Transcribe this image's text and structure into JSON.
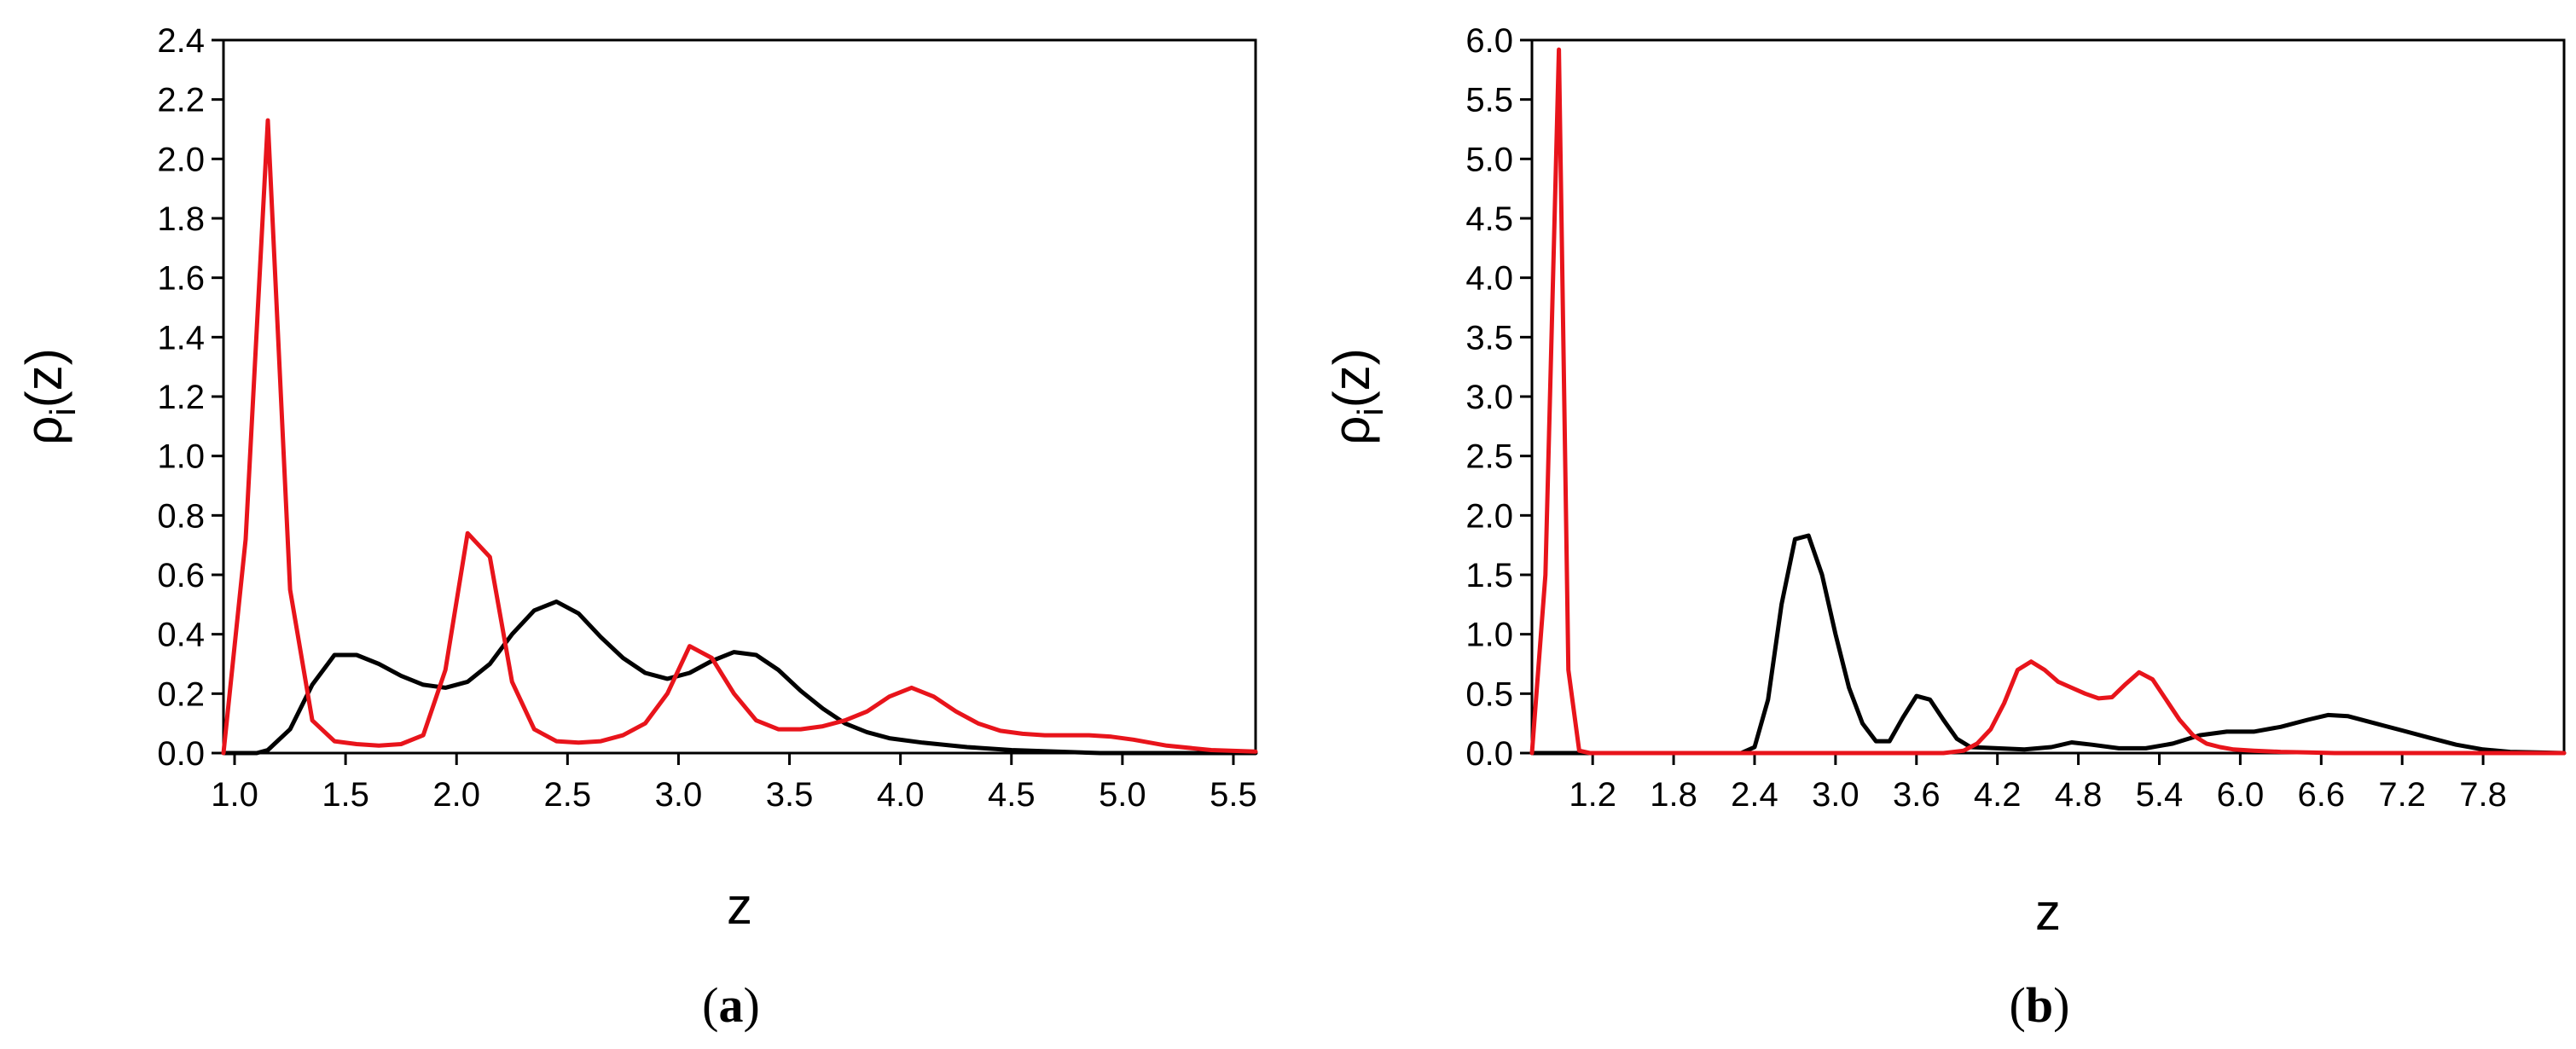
{
  "chart_data": [
    {
      "type": "line",
      "panel_label": "a",
      "xlabel": "z",
      "ylabel_main": "ρ",
      "ylabel_sub": "i",
      "ylabel_arg": "(z)",
      "xlim": [
        0.95,
        5.6
      ],
      "ylim": [
        0,
        2.4
      ],
      "xticks": [
        "1.0",
        "1.5",
        "2.0",
        "2.5",
        "3.0",
        "3.5",
        "4.0",
        "4.5",
        "5.0",
        "5.5"
      ],
      "yticks": [
        "0.0",
        "0.2",
        "0.4",
        "0.6",
        "0.8",
        "1.0",
        "1.2",
        "1.4",
        "1.6",
        "1.8",
        "2.0",
        "2.2",
        "2.4"
      ],
      "series": [
        {
          "color": "#000000",
          "x": [
            0.95,
            1.0,
            1.1,
            1.15,
            1.25,
            1.35,
            1.45,
            1.55,
            1.65,
            1.75,
            1.85,
            1.95,
            2.05,
            2.15,
            2.25,
            2.35,
            2.45,
            2.55,
            2.65,
            2.75,
            2.85,
            2.95,
            3.05,
            3.15,
            3.25,
            3.35,
            3.45,
            3.55,
            3.65,
            3.75,
            3.85,
            3.95,
            4.1,
            4.3,
            4.5,
            4.7,
            4.9,
            5.1,
            5.3,
            5.6
          ],
          "y": [
            0.0,
            0.0,
            0.0,
            0.01,
            0.08,
            0.23,
            0.33,
            0.33,
            0.3,
            0.26,
            0.23,
            0.22,
            0.24,
            0.3,
            0.4,
            0.48,
            0.51,
            0.47,
            0.39,
            0.32,
            0.27,
            0.25,
            0.27,
            0.31,
            0.34,
            0.33,
            0.28,
            0.21,
            0.15,
            0.1,
            0.07,
            0.05,
            0.035,
            0.02,
            0.01,
            0.005,
            0.0,
            0.0,
            0.0,
            0.0
          ]
        },
        {
          "color": "#e8141b",
          "x": [
            0.95,
            1.05,
            1.15,
            1.25,
            1.35,
            1.45,
            1.55,
            1.65,
            1.75,
            1.85,
            1.95,
            2.05,
            2.15,
            2.25,
            2.35,
            2.45,
            2.55,
            2.65,
            2.75,
            2.85,
            2.95,
            3.05,
            3.15,
            3.25,
            3.35,
            3.45,
            3.55,
            3.65,
            3.75,
            3.85,
            3.95,
            4.05,
            4.15,
            4.25,
            4.35,
            4.45,
            4.55,
            4.65,
            4.75,
            4.85,
            4.95,
            5.05,
            5.2,
            5.4,
            5.6
          ],
          "y": [
            0.0,
            0.72,
            2.13,
            0.55,
            0.11,
            0.04,
            0.03,
            0.025,
            0.03,
            0.06,
            0.28,
            0.74,
            0.66,
            0.24,
            0.08,
            0.04,
            0.035,
            0.04,
            0.06,
            0.1,
            0.2,
            0.36,
            0.32,
            0.2,
            0.11,
            0.08,
            0.08,
            0.09,
            0.11,
            0.14,
            0.19,
            0.22,
            0.19,
            0.14,
            0.1,
            0.075,
            0.065,
            0.06,
            0.06,
            0.06,
            0.055,
            0.045,
            0.025,
            0.01,
            0.005
          ]
        }
      ]
    },
    {
      "type": "line",
      "panel_label": "b",
      "xlabel": "z",
      "ylabel_main": "ρ",
      "ylabel_sub": "i",
      "ylabel_arg": "(z)",
      "xlim": [
        0.75,
        8.4
      ],
      "ylim": [
        0,
        6.0
      ],
      "xticks": [
        "1.2",
        "1.8",
        "2.4",
        "3.0",
        "3.6",
        "4.2",
        "4.8",
        "5.4",
        "6.0",
        "6.6",
        "7.2",
        "7.8"
      ],
      "yticks": [
        "0.0",
        "0.5",
        "1.0",
        "1.5",
        "2.0",
        "2.5",
        "3.0",
        "3.5",
        "4.0",
        "4.5",
        "5.0",
        "5.5",
        "6.0"
      ],
      "series": [
        {
          "color": "#000000",
          "x": [
            0.75,
            1.0,
            1.5,
            2.0,
            2.3,
            2.4,
            2.5,
            2.6,
            2.7,
            2.8,
            2.9,
            3.0,
            3.1,
            3.2,
            3.3,
            3.4,
            3.5,
            3.6,
            3.7,
            3.8,
            3.9,
            4.0,
            4.2,
            4.4,
            4.6,
            4.75,
            4.9,
            5.1,
            5.3,
            5.5,
            5.7,
            5.9,
            6.1,
            6.3,
            6.5,
            6.65,
            6.8,
            7.0,
            7.2,
            7.4,
            7.6,
            7.8,
            8.0,
            8.2,
            8.4
          ],
          "y": [
            0.0,
            0.0,
            0.0,
            0.0,
            0.0,
            0.05,
            0.45,
            1.25,
            1.8,
            1.83,
            1.5,
            1.0,
            0.55,
            0.25,
            0.1,
            0.1,
            0.3,
            0.48,
            0.45,
            0.28,
            0.12,
            0.05,
            0.04,
            0.03,
            0.05,
            0.09,
            0.07,
            0.04,
            0.04,
            0.08,
            0.15,
            0.18,
            0.18,
            0.22,
            0.28,
            0.32,
            0.31,
            0.25,
            0.19,
            0.13,
            0.07,
            0.03,
            0.01,
            0.005,
            0.0
          ]
        },
        {
          "color": "#e8141b",
          "x": [
            0.75,
            0.85,
            0.95,
            1.02,
            1.1,
            1.18,
            1.3,
            1.5,
            2.0,
            2.5,
            3.0,
            3.5,
            3.8,
            3.95,
            4.05,
            4.15,
            4.25,
            4.35,
            4.45,
            4.55,
            4.65,
            4.75,
            4.85,
            4.95,
            5.05,
            5.15,
            5.25,
            5.35,
            5.45,
            5.55,
            5.65,
            5.75,
            5.85,
            5.95,
            6.1,
            6.3,
            6.5,
            6.7,
            7.0,
            7.5,
            8.0,
            8.4
          ],
          "y": [
            0.0,
            1.5,
            5.92,
            0.7,
            0.02,
            0.0,
            0.0,
            0.0,
            0.0,
            0.0,
            0.0,
            0.0,
            0.0,
            0.02,
            0.08,
            0.2,
            0.42,
            0.7,
            0.77,
            0.7,
            0.6,
            0.55,
            0.5,
            0.46,
            0.47,
            0.58,
            0.68,
            0.62,
            0.45,
            0.28,
            0.15,
            0.08,
            0.05,
            0.03,
            0.02,
            0.01,
            0.005,
            0.0,
            0.0,
            0.0,
            0.0,
            0.0
          ]
        }
      ]
    }
  ]
}
